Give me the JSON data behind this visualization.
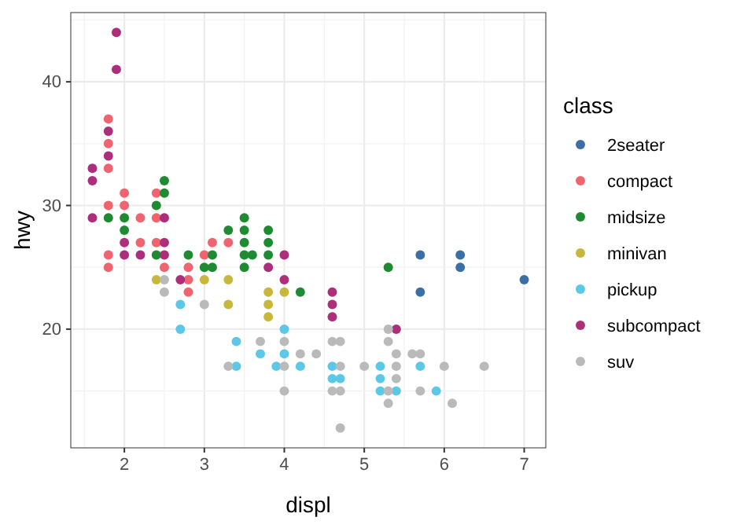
{
  "chart_data": {
    "type": "scatter",
    "xlabel": "displ",
    "ylabel": "hwy",
    "legend_title": "class",
    "legend": "right",
    "grid": true,
    "marker": "circle",
    "xlim": [
      1.33,
      7.27
    ],
    "ylim": [
      10.4,
      45.6
    ],
    "xticks": [
      2,
      3,
      4,
      5,
      6,
      7
    ],
    "yticks": [
      20,
      30,
      40
    ],
    "series": [
      {
        "name": "2seater",
        "color": "#3b6fa6",
        "x": [
          5.7,
          6.2,
          6.2,
          7.0,
          5.7
        ],
        "values": [
          26,
          26,
          25,
          24,
          23
        ]
      },
      {
        "name": "compact",
        "color": "#f0646f",
        "x": [
          1.8,
          1.8,
          1.8,
          2.0,
          2.4,
          1.8,
          2.0,
          2.4,
          2.2,
          2.4,
          2.2,
          3.1,
          3.3,
          1.8,
          3.0,
          1.8,
          2.5,
          2.8,
          2.8,
          2.8
        ],
        "values": [
          37,
          35,
          33,
          31,
          31,
          30,
          30,
          29,
          29,
          27,
          27,
          27,
          27,
          26,
          26,
          25,
          25,
          25,
          24,
          23
        ]
      },
      {
        "name": "midsize",
        "color": "#1e8a32",
        "x": [
          2.5,
          2.5,
          2.4,
          1.8,
          2.0,
          3.5,
          2.0,
          3.3,
          3.5,
          3.8,
          3.5,
          3.8,
          2.4,
          2.8,
          3.1,
          3.5,
          3.6,
          3.8,
          3.0,
          3.1,
          3.5,
          4.2,
          5.3
        ],
        "values": [
          32,
          31,
          30,
          29,
          29,
          29,
          28,
          28,
          28,
          28,
          27,
          27,
          26,
          26,
          26,
          26,
          26,
          26,
          25,
          25,
          25,
          23,
          25
        ]
      },
      {
        "name": "minivan",
        "color": "#c9b73b",
        "x": [
          2.4,
          3.0,
          3.3,
          3.8,
          4.0,
          3.3,
          3.8,
          3.8
        ],
        "values": [
          24,
          24,
          24,
          23,
          23,
          22,
          22,
          21
        ]
      },
      {
        "name": "pickup",
        "color": "#5cc8e8",
        "x": [
          2.7,
          2.7,
          4.0,
          3.4,
          3.7,
          4.0,
          3.4,
          3.9,
          4.2,
          4.6,
          5.2,
          5.7,
          4.6,
          4.7,
          5.2,
          5.2,
          5.4,
          5.9
        ],
        "values": [
          22,
          20,
          20,
          19,
          18,
          18,
          17,
          17,
          17,
          17,
          17,
          17,
          16,
          16,
          16,
          15,
          15,
          15
        ]
      },
      {
        "name": "subcompact",
        "color": "#ad2e7a",
        "x": [
          1.9,
          1.9,
          1.8,
          1.8,
          1.6,
          1.6,
          1.6,
          2.5,
          2.0,
          2.5,
          2.0,
          2.2,
          2.5,
          4.0,
          3.8,
          2.7,
          4.0,
          4.6,
          4.6,
          4.6,
          5.4
        ],
        "values": [
          44,
          41,
          36,
          34,
          33,
          32,
          29,
          29,
          27,
          27,
          26,
          26,
          26,
          26,
          25,
          24,
          24,
          23,
          22,
          21,
          20
        ]
      },
      {
        "name": "suv",
        "color": "#bababa",
        "x": [
          2.5,
          2.5,
          3.0,
          3.7,
          4.0,
          5.3,
          4.6,
          4.7,
          5.3,
          4.2,
          4.4,
          5.4,
          5.6,
          5.7,
          3.3,
          4.0,
          4.7,
          5.0,
          5.4,
          6.0,
          6.5,
          5.4,
          4.0,
          4.6,
          4.7,
          5.3,
          5.7,
          5.3,
          6.1,
          4.7
        ],
        "values": [
          24,
          23,
          22,
          19,
          19,
          20,
          19,
          19,
          19,
          18,
          18,
          18,
          18,
          18,
          17,
          17,
          17,
          17,
          17,
          17,
          17,
          16,
          15,
          15,
          15,
          15,
          15,
          14,
          14,
          12
        ]
      }
    ]
  }
}
